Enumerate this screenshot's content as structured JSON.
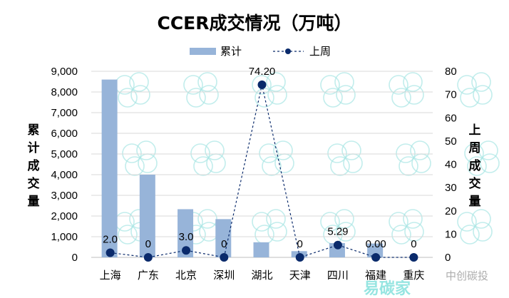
{
  "chart_data": {
    "type": "bar+line",
    "title": "CCER成交情况（万吨）",
    "categories": [
      "上海",
      "广东",
      "北京",
      "深圳",
      "湖北",
      "天津",
      "四川",
      "福建",
      "重庆"
    ],
    "series": [
      {
        "name": "累计",
        "type": "bar",
        "axis": "left",
        "color": "#97B4D9",
        "values": [
          8600,
          4000,
          2330,
          1850,
          730,
          300,
          690,
          670,
          0
        ]
      },
      {
        "name": "上周",
        "type": "line",
        "axis": "right",
        "color": "#0A2A6B",
        "line_style": "dashed",
        "marker": "circle",
        "values": [
          2.0,
          0,
          3.0,
          0,
          74.2,
          0,
          5.29,
          0.0,
          0
        ],
        "data_labels": [
          "2.0",
          "0",
          "3.0",
          "0",
          "74.20",
          "0",
          "5.29",
          "0.00",
          "0"
        ]
      }
    ],
    "left_axis": {
      "label": "累计成交量",
      "ylim": [
        0,
        9000
      ],
      "ticks": [
        "0",
        "1,000",
        "2,000",
        "3,000",
        "4,000",
        "5,000",
        "6,000",
        "7,000",
        "8,000",
        "9,000"
      ]
    },
    "right_axis": {
      "label": "上周成交量",
      "ylim": [
        0,
        80
      ],
      "ticks": [
        "0",
        "10",
        "20",
        "30",
        "40",
        "50",
        "60",
        "70",
        "80"
      ]
    },
    "grid": true,
    "legend": "top-center"
  },
  "watermark": {
    "logo_text": "易碳家",
    "tagline": "中创碳投"
  }
}
